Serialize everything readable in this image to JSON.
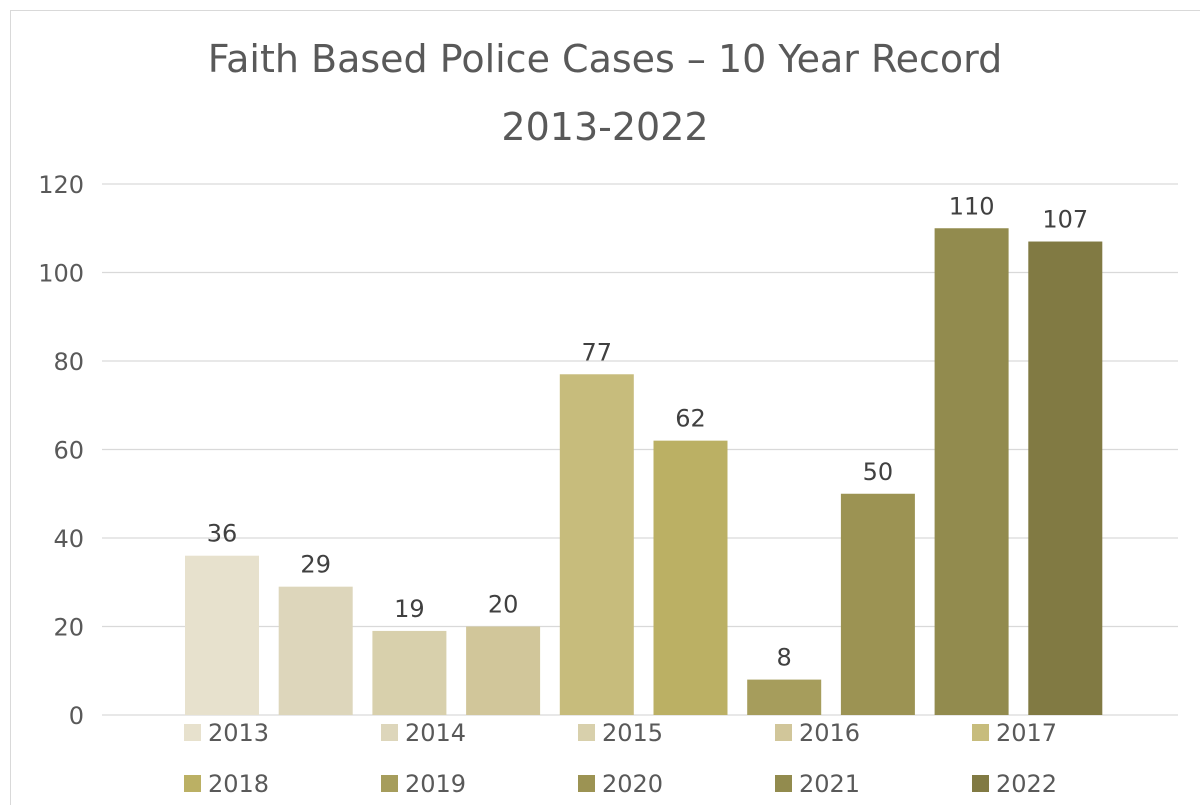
{
  "chart_data": {
    "type": "bar",
    "title": "Faith Based Police Cases – 10 Year Record",
    "subtitle": "2013-2022",
    "categories": [
      "2013",
      "2014",
      "2015",
      "2016",
      "2017",
      "2018",
      "2019",
      "2020",
      "2021",
      "2022"
    ],
    "values": [
      36,
      29,
      19,
      20,
      77,
      62,
      8,
      50,
      110,
      107
    ],
    "ylim": [
      0,
      120
    ],
    "yticks": [
      "0",
      "20",
      "40",
      "60",
      "80",
      "100",
      "120"
    ],
    "xlabel": "",
    "ylabel": "",
    "grid": true,
    "legend_position": "bottom",
    "data_labels": true,
    "colors": [
      "#e7e1cd",
      "#ddd6bb",
      "#d8d0ac",
      "#d1c69a",
      "#c7bc7c",
      "#bbb064",
      "#a69d5c",
      "#9c9353",
      "#928b4e",
      "#817a43"
    ]
  }
}
